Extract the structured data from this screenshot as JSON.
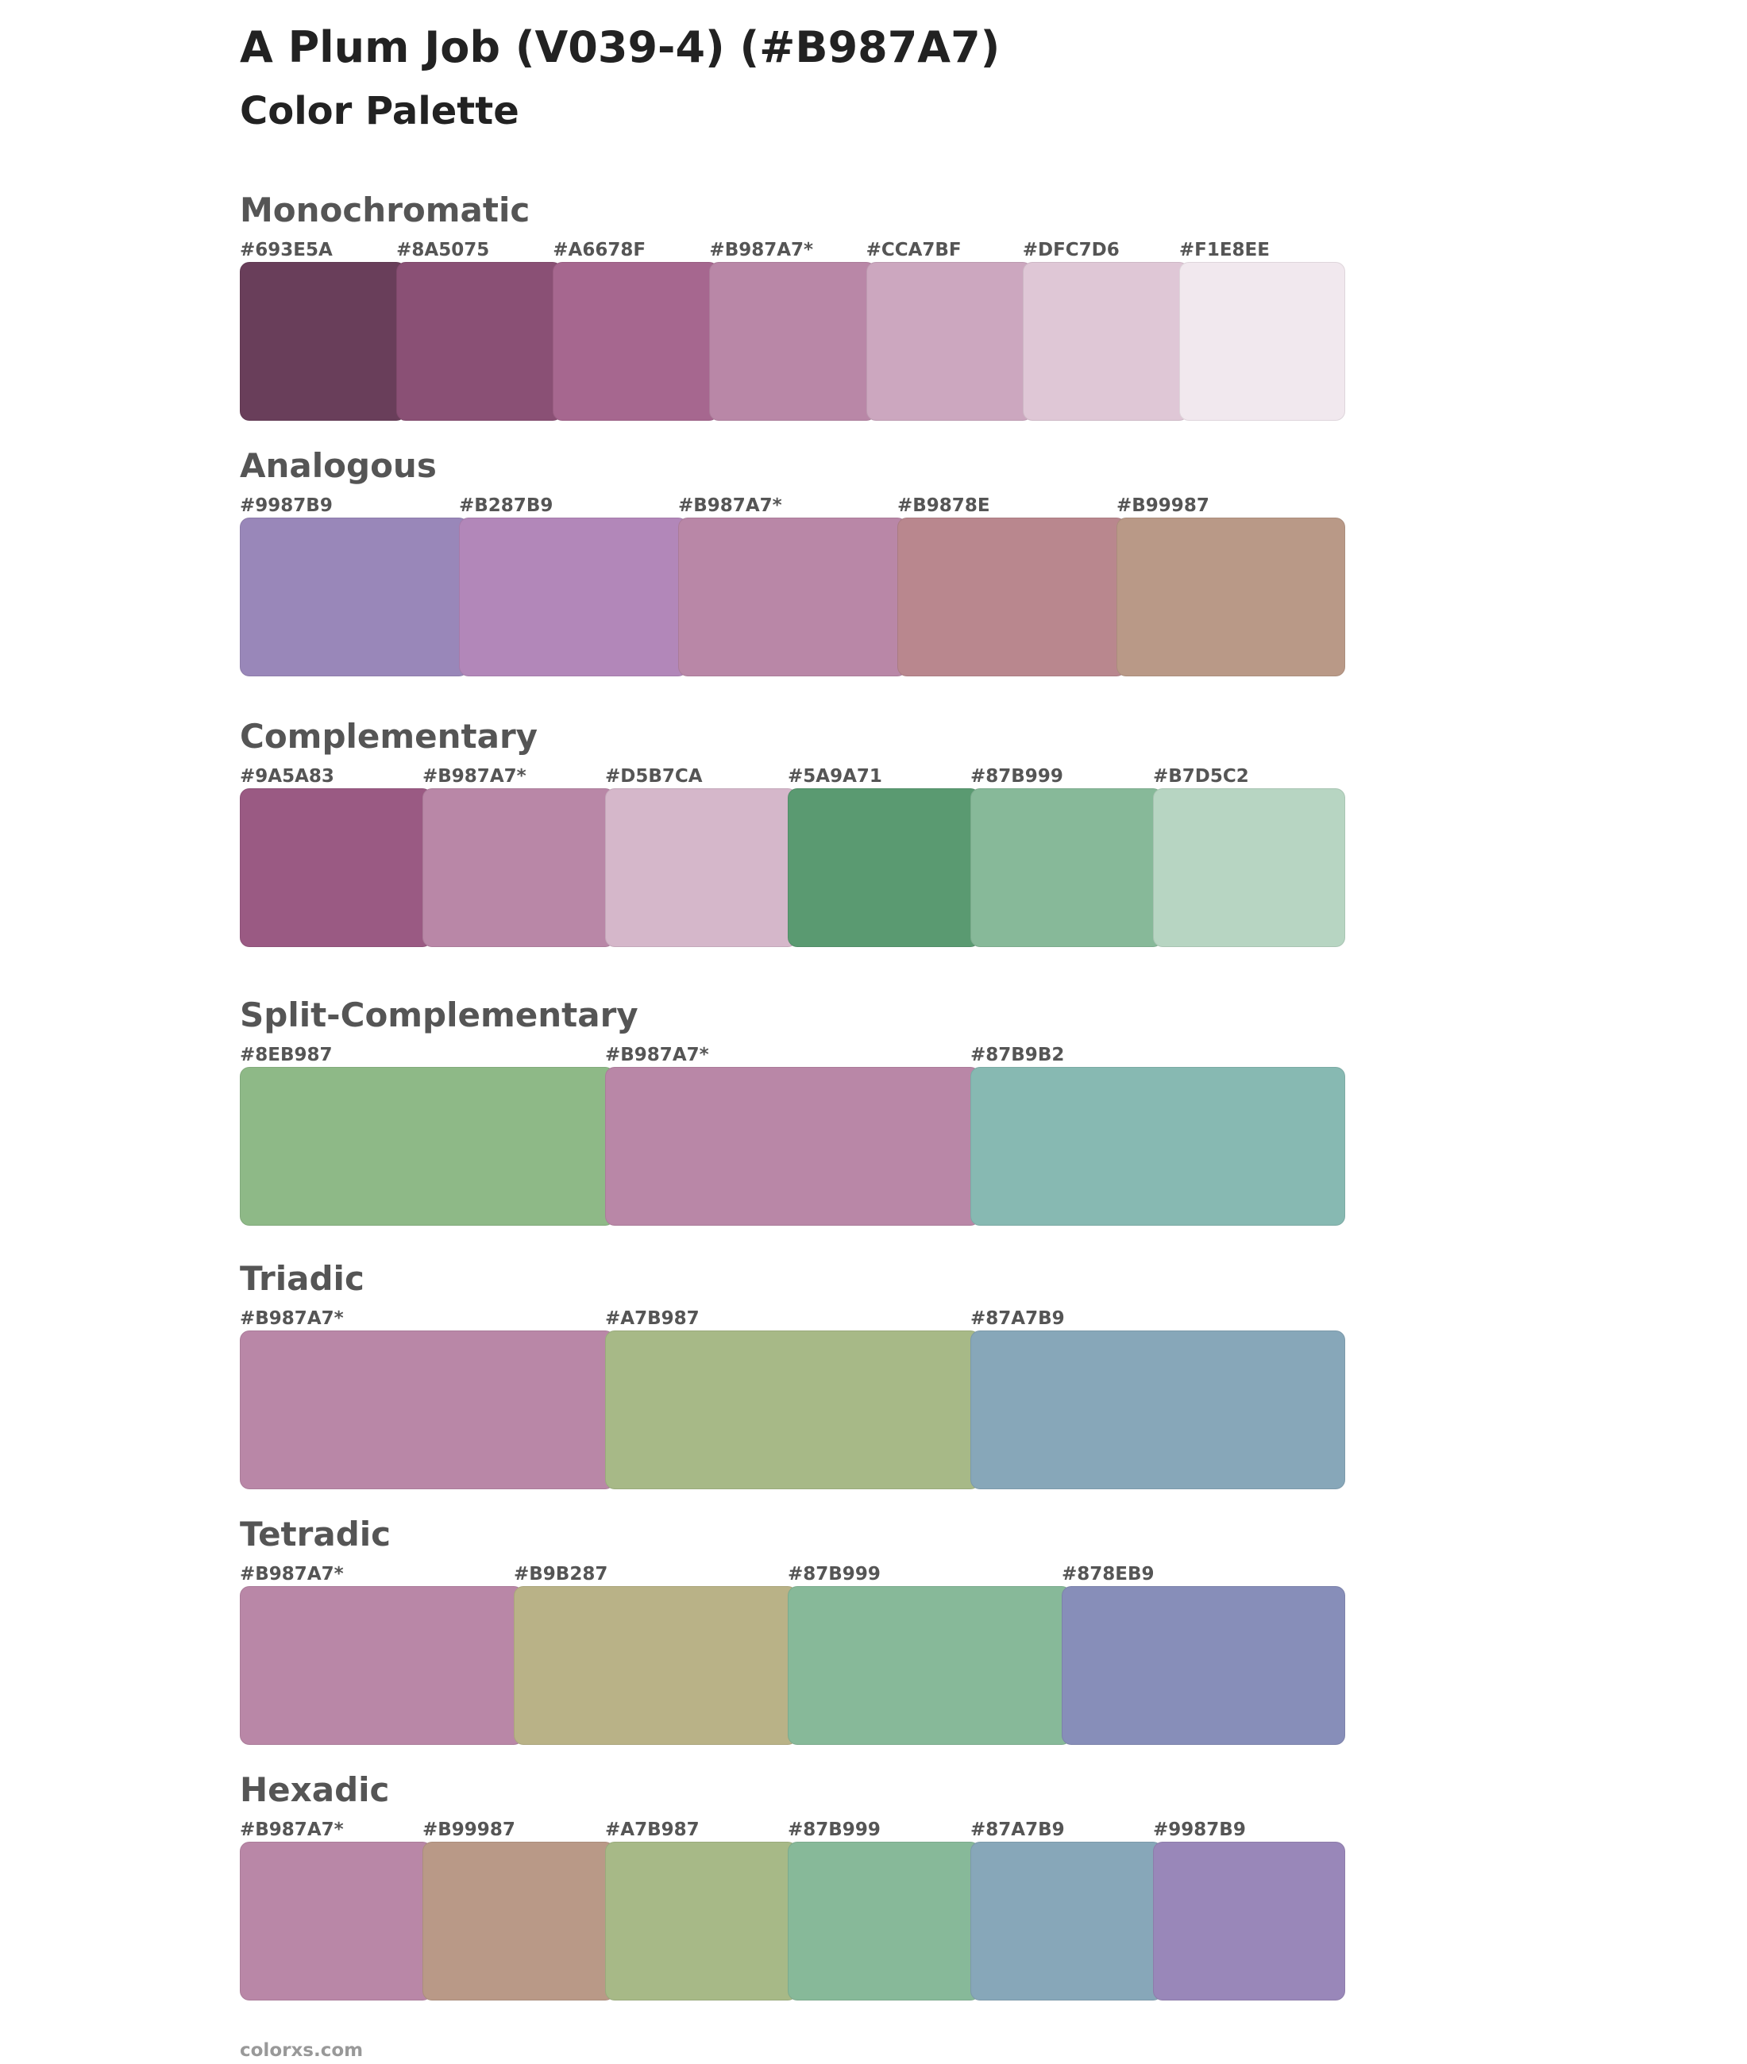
{
  "title": "A Plum Job (V039-4) (#B987A7)",
  "subtitle": "Color Palette",
  "sections": [
    {
      "name": "Monochromatic",
      "swatches": [
        {
          "label": "#693E5A",
          "color": "#693E5A"
        },
        {
          "label": "#8A5075",
          "color": "#8A5075"
        },
        {
          "label": "#A6678F",
          "color": "#A6678F"
        },
        {
          "label": "#B987A7*",
          "color": "#B987A7"
        },
        {
          "label": "#CCA7BF",
          "color": "#CCA7BF"
        },
        {
          "label": "#DFC7D6",
          "color": "#DFC7D6"
        },
        {
          "label": "#F1E8EE",
          "color": "#F1E8EE"
        }
      ]
    },
    {
      "name": "Analogous",
      "swatches": [
        {
          "label": "#9987B9",
          "color": "#9987B9"
        },
        {
          "label": "#B287B9",
          "color": "#B287B9"
        },
        {
          "label": "#B987A7*",
          "color": "#B987A7"
        },
        {
          "label": "#B9878E",
          "color": "#B9878E"
        },
        {
          "label": "#B99987",
          "color": "#B99987"
        }
      ]
    },
    {
      "name": "Complementary",
      "swatches": [
        {
          "label": "#9A5A83",
          "color": "#9A5A83"
        },
        {
          "label": "#B987A7*",
          "color": "#B987A7"
        },
        {
          "label": "#D5B7CA",
          "color": "#D5B7CA"
        },
        {
          "label": "#5A9A71",
          "color": "#5A9A71"
        },
        {
          "label": "#87B999",
          "color": "#87B999"
        },
        {
          "label": "#B7D5C2",
          "color": "#B7D5C2"
        }
      ]
    },
    {
      "name": "Split-Complementary",
      "swatches": [
        {
          "label": "#8EB987",
          "color": "#8EB987"
        },
        {
          "label": "#B987A7*",
          "color": "#B987A7"
        },
        {
          "label": "#87B9B2",
          "color": "#87B9B2"
        }
      ]
    },
    {
      "name": "Triadic",
      "swatches": [
        {
          "label": "#B987A7*",
          "color": "#B987A7"
        },
        {
          "label": "#A7B987",
          "color": "#A7B987"
        },
        {
          "label": "#87A7B9",
          "color": "#87A7B9"
        }
      ]
    },
    {
      "name": "Tetradic",
      "swatches": [
        {
          "label": "#B987A7*",
          "color": "#B987A7"
        },
        {
          "label": "#B9B287",
          "color": "#B9B287"
        },
        {
          "label": "#87B999",
          "color": "#87B999"
        },
        {
          "label": "#878EB9",
          "color": "#878EB9"
        }
      ]
    },
    {
      "name": "Hexadic",
      "swatches": [
        {
          "label": "#B987A7*",
          "color": "#B987A7"
        },
        {
          "label": "#B99987",
          "color": "#B99987"
        },
        {
          "label": "#A7B987",
          "color": "#A7B987"
        },
        {
          "label": "#87B999",
          "color": "#87B999"
        },
        {
          "label": "#87A7B9",
          "color": "#87A7B9"
        },
        {
          "label": "#9987B9",
          "color": "#9987B9"
        }
      ]
    }
  ],
  "footer": "colorxs.com"
}
